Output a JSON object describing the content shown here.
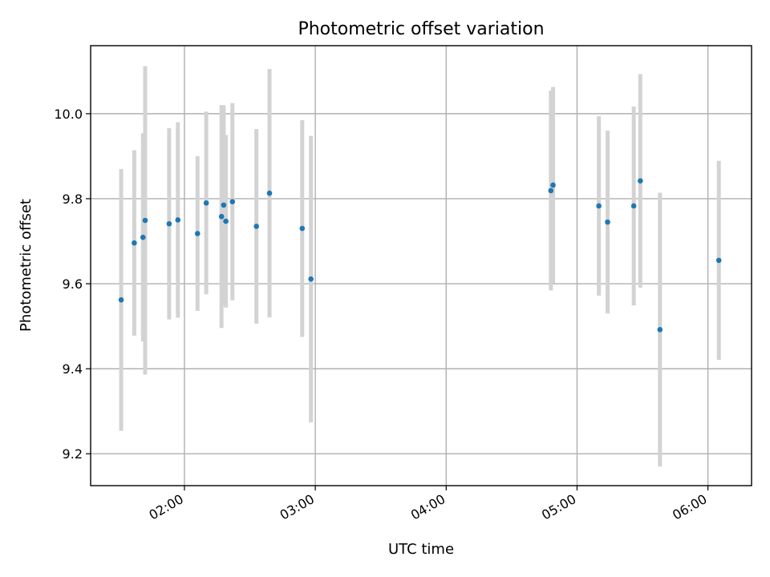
{
  "chart_data": {
    "type": "scatter",
    "title": "Photometric offset variation",
    "xlabel": "UTC time",
    "ylabel": "Photometric offset",
    "x_axis": "time",
    "xlim": [
      "01:17",
      "06:20"
    ],
    "ylim": [
      9.125,
      10.16
    ],
    "x_ticks": [
      "02:00",
      "03:00",
      "04:00",
      "05:00",
      "06:00"
    ],
    "y_ticks": [
      "9.2",
      "9.4",
      "9.6",
      "9.8",
      "10.0"
    ],
    "y_tick_values": [
      9.2,
      9.4,
      9.6,
      9.8,
      10.0
    ],
    "grid": true,
    "legend": "none",
    "point_color": "#1f77b4",
    "errorbar_color": "#d3d3d3",
    "series": [
      {
        "points": [
          {
            "x": "01:31",
            "y": 9.562,
            "yerr": 0.308
          },
          {
            "x": "01:37",
            "y": 9.696,
            "yerr": 0.218
          },
          {
            "x": "01:41",
            "y": 9.709,
            "yerr": 0.245
          },
          {
            "x": "01:42",
            "y": 9.749,
            "yerr": 0.363
          },
          {
            "x": "01:53",
            "y": 9.741,
            "yerr": 0.225
          },
          {
            "x": "01:57",
            "y": 9.75,
            "yerr": 0.23
          },
          {
            "x": "02:06",
            "y": 9.718,
            "yerr": 0.182
          },
          {
            "x": "02:10",
            "y": 9.79,
            "yerr": 0.215
          },
          {
            "x": "02:17",
            "y": 9.758,
            "yerr": 0.262
          },
          {
            "x": "02:18",
            "y": 9.785,
            "yerr": 0.235
          },
          {
            "x": "02:19",
            "y": 9.747,
            "yerr": 0.203
          },
          {
            "x": "02:22",
            "y": 9.793,
            "yerr": 0.232
          },
          {
            "x": "02:33",
            "y": 9.735,
            "yerr": 0.229
          },
          {
            "x": "02:39",
            "y": 9.813,
            "yerr": 0.292
          },
          {
            "x": "02:54",
            "y": 9.73,
            "yerr": 0.255
          },
          {
            "x": "02:58",
            "y": 9.611,
            "yerr": 0.337
          },
          {
            "x": "04:48",
            "y": 9.819,
            "yerr": 0.235
          },
          {
            "x": "04:49",
            "y": 9.832,
            "yerr": 0.231
          },
          {
            "x": "05:10",
            "y": 9.783,
            "yerr": 0.211
          },
          {
            "x": "05:14",
            "y": 9.745,
            "yerr": 0.215
          },
          {
            "x": "05:26",
            "y": 9.783,
            "yerr": 0.234
          },
          {
            "x": "05:29",
            "y": 9.842,
            "yerr": 0.251
          },
          {
            "x": "05:38",
            "y": 9.492,
            "yerr": 0.322
          },
          {
            "x": "06:05",
            "y": 9.655,
            "yerr": 0.234
          }
        ]
      }
    ]
  }
}
